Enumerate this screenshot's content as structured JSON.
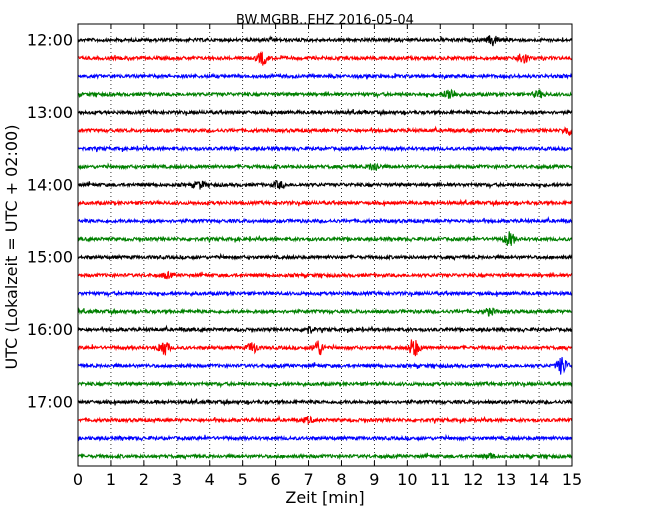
{
  "chart_data": {
    "type": "line",
    "title": "BW.MGBB..EHZ 2016-05-04",
    "xlabel": "Zeit  [min]",
    "ylabel": "UTC (Lokalzeit = UTC + 02:00)",
    "xlim": [
      0,
      15
    ],
    "x_ticks": [
      "0",
      "1",
      "2",
      "3",
      "4",
      "5",
      "6",
      "7",
      "8",
      "9",
      "10",
      "11",
      "12",
      "13",
      "14",
      "15"
    ],
    "y_ticks": [
      "12:00",
      "13:00",
      "14:00",
      "15:00",
      "16:00",
      "17:00"
    ],
    "grid": "vertical dotted",
    "trace_interval_min": 15,
    "colors": [
      "#000000",
      "#ff0000",
      "#0000ff",
      "#008000"
    ],
    "traces": [
      {
        "start": "12:00",
        "events": [
          {
            "t": 12.6,
            "amp": 0.6
          }
        ]
      },
      {
        "start": "12:15",
        "events": [
          {
            "t": 5.6,
            "amp": 0.7
          },
          {
            "t": 13.5,
            "amp": 0.7
          }
        ]
      },
      {
        "start": "12:30",
        "events": []
      },
      {
        "start": "12:45",
        "events": [
          {
            "t": 11.3,
            "amp": 0.7
          },
          {
            "t": 14.0,
            "amp": 0.4
          }
        ]
      },
      {
        "start": "13:00",
        "events": []
      },
      {
        "start": "13:15",
        "events": [
          {
            "t": 14.9,
            "amp": 0.5
          }
        ]
      },
      {
        "start": "13:30",
        "events": []
      },
      {
        "start": "13:45",
        "events": [
          {
            "t": 9.0,
            "amp": 0.5
          }
        ]
      },
      {
        "start": "14:00",
        "events": [
          {
            "t": 3.7,
            "amp": 0.4
          },
          {
            "t": 6.1,
            "amp": 0.4
          }
        ]
      },
      {
        "start": "14:15",
        "events": []
      },
      {
        "start": "14:30",
        "events": []
      },
      {
        "start": "14:45",
        "events": [
          {
            "t": 13.1,
            "amp": 0.8
          }
        ]
      },
      {
        "start": "15:00",
        "events": []
      },
      {
        "start": "15:15",
        "events": [
          {
            "t": 2.7,
            "amp": 0.3
          }
        ]
      },
      {
        "start": "15:30",
        "events": []
      },
      {
        "start": "15:45",
        "events": [
          {
            "t": 12.5,
            "amp": 0.4
          }
        ]
      },
      {
        "start": "16:00",
        "events": [
          {
            "t": 7.0,
            "amp": 0.4
          }
        ]
      },
      {
        "start": "16:15",
        "events": [
          {
            "t": 2.6,
            "amp": 0.9
          },
          {
            "t": 5.3,
            "amp": 0.6
          },
          {
            "t": 7.3,
            "amp": 0.9
          },
          {
            "t": 10.2,
            "amp": 1.1
          }
        ]
      },
      {
        "start": "16:30",
        "events": [
          {
            "t": 14.7,
            "amp": 1.0
          }
        ]
      },
      {
        "start": "16:45",
        "events": []
      },
      {
        "start": "17:00",
        "events": []
      },
      {
        "start": "17:15",
        "events": [
          {
            "t": 7.0,
            "amp": 0.3
          }
        ]
      },
      {
        "start": "17:30",
        "events": []
      },
      {
        "start": "17:45",
        "events": [
          {
            "t": 12.5,
            "amp": 0.3
          }
        ]
      }
    ]
  }
}
